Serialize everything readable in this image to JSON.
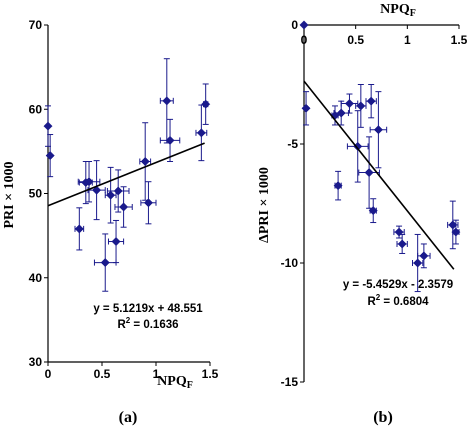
{
  "chart_data": [
    {
      "type": "scatter",
      "panel_label": "(a)",
      "xlabel": "NPQ",
      "xlabel_sub": "F",
      "ylabel": "PRI × 1000",
      "xlim": [
        0,
        1.5
      ],
      "ylim": [
        30,
        70
      ],
      "x_ticks": [
        "0",
        "0.5",
        "1",
        "1.5"
      ],
      "y_ticks": [
        "30",
        "40",
        "50",
        "60",
        "70"
      ],
      "x_tick_values": [
        0,
        0.5,
        1,
        1.5
      ],
      "y_tick_values": [
        30,
        40,
        50,
        60,
        70
      ],
      "equation": "y = 5.1219x + 48.551",
      "r2_prefix": "R",
      "r2_sup": "2",
      "r2_value": " = 0.1636",
      "trendline": {
        "slope": 5.1219,
        "intercept": 48.551,
        "x_range": [
          0,
          1.45
        ]
      },
      "marker_color": "#1a1a8c",
      "points": [
        {
          "x": 0.0,
          "y": 58.0,
          "xerr": 0.0,
          "yerr": 2.4
        },
        {
          "x": 0.02,
          "y": 54.5,
          "xerr": 0.0,
          "yerr": 2.5
        },
        {
          "x": 0.29,
          "y": 45.8,
          "xerr": 0.04,
          "yerr": 2.5
        },
        {
          "x": 0.35,
          "y": 51.3,
          "xerr": 0.06,
          "yerr": 2.5
        },
        {
          "x": 0.38,
          "y": 51.4,
          "xerr": 0.1,
          "yerr": 2.4
        },
        {
          "x": 0.45,
          "y": 50.4,
          "xerr": 0.08,
          "yerr": 3.5
        },
        {
          "x": 0.53,
          "y": 41.8,
          "xerr": 0.1,
          "yerr": 3.4
        },
        {
          "x": 0.58,
          "y": 49.8,
          "xerr": 0.05,
          "yerr": 3.3
        },
        {
          "x": 0.63,
          "y": 44.3,
          "xerr": 0.07,
          "yerr": 2.5
        },
        {
          "x": 0.65,
          "y": 50.3,
          "xerr": 0.1,
          "yerr": 2.5
        },
        {
          "x": 0.7,
          "y": 48.4,
          "xerr": 0.08,
          "yerr": 2.4
        },
        {
          "x": 0.9,
          "y": 53.8,
          "xerr": 0.05,
          "yerr": 4.6
        },
        {
          "x": 0.93,
          "y": 48.9,
          "xerr": 0.07,
          "yerr": 2.5
        },
        {
          "x": 1.1,
          "y": 61.0,
          "xerr": 0.06,
          "yerr": 5.0
        },
        {
          "x": 1.13,
          "y": 56.3,
          "xerr": 0.09,
          "yerr": 2.5
        },
        {
          "x": 1.42,
          "y": 57.2,
          "xerr": 0.05,
          "yerr": 3.3
        },
        {
          "x": 1.46,
          "y": 60.6,
          "xerr": 0.02,
          "yerr": 2.4
        }
      ]
    },
    {
      "type": "scatter",
      "panel_label": "(b)",
      "xlabel": "NPQ",
      "xlabel_sub": "F",
      "ylabel": "ΔPRI × 1000",
      "xlim": [
        0,
        1.5
      ],
      "ylim": [
        -15,
        0
      ],
      "x_ticks": [
        "0",
        "0.5",
        "1",
        "1.5"
      ],
      "y_ticks": [
        "0",
        "-5",
        "-10",
        "-15"
      ],
      "x_tick_values": [
        0,
        0.5,
        1,
        1.5
      ],
      "y_tick_values": [
        0,
        -5,
        -10,
        -15
      ],
      "equation": "y = -5.4529x - 2.3579",
      "r2_prefix": "R",
      "r2_sup": "2",
      "r2_value": " = 0.6804",
      "trendline": {
        "slope": -5.4529,
        "intercept": -2.3579,
        "x_range": [
          0,
          1.45
        ]
      },
      "marker_color": "#1a1a8c",
      "points": [
        {
          "x": 0.0,
          "y": 0.0,
          "xerr": 0.0,
          "yerr": 0.0
        },
        {
          "x": 0.02,
          "y": -3.5,
          "xerr": 0.0,
          "yerr": 0.7
        },
        {
          "x": 0.3,
          "y": -3.8,
          "xerr": 0.03,
          "yerr": 0.4
        },
        {
          "x": 0.33,
          "y": -6.75,
          "xerr": 0.03,
          "yerr": 0.6
        },
        {
          "x": 0.36,
          "y": -3.7,
          "xerr": 0.07,
          "yerr": 0.5
        },
        {
          "x": 0.44,
          "y": -3.3,
          "xerr": 0.08,
          "yerr": 0.4
        },
        {
          "x": 0.52,
          "y": -5.1,
          "xerr": 0.1,
          "yerr": 1.5
        },
        {
          "x": 0.55,
          "y": -3.4,
          "xerr": 0.05,
          "yerr": 0.9
        },
        {
          "x": 0.63,
          "y": -6.2,
          "xerr": 0.1,
          "yerr": 1.5
        },
        {
          "x": 0.65,
          "y": -3.2,
          "xerr": 0.05,
          "yerr": 0.7
        },
        {
          "x": 0.67,
          "y": -7.8,
          "xerr": 0.03,
          "yerr": 0.5
        },
        {
          "x": 0.72,
          "y": -4.4,
          "xerr": 0.08,
          "yerr": 1.6
        },
        {
          "x": 0.92,
          "y": -8.7,
          "xerr": 0.05,
          "yerr": 0.25
        },
        {
          "x": 0.95,
          "y": -9.2,
          "xerr": 0.05,
          "yerr": 0.4
        },
        {
          "x": 1.1,
          "y": -10.0,
          "xerr": 0.05,
          "yerr": 1.2
        },
        {
          "x": 1.16,
          "y": -9.7,
          "xerr": 0.06,
          "yerr": 0.5
        },
        {
          "x": 1.44,
          "y": -8.4,
          "xerr": 0.05,
          "yerr": 1.0
        },
        {
          "x": 1.47,
          "y": -8.7,
          "xerr": 0.03,
          "yerr": 0.5
        }
      ]
    }
  ]
}
